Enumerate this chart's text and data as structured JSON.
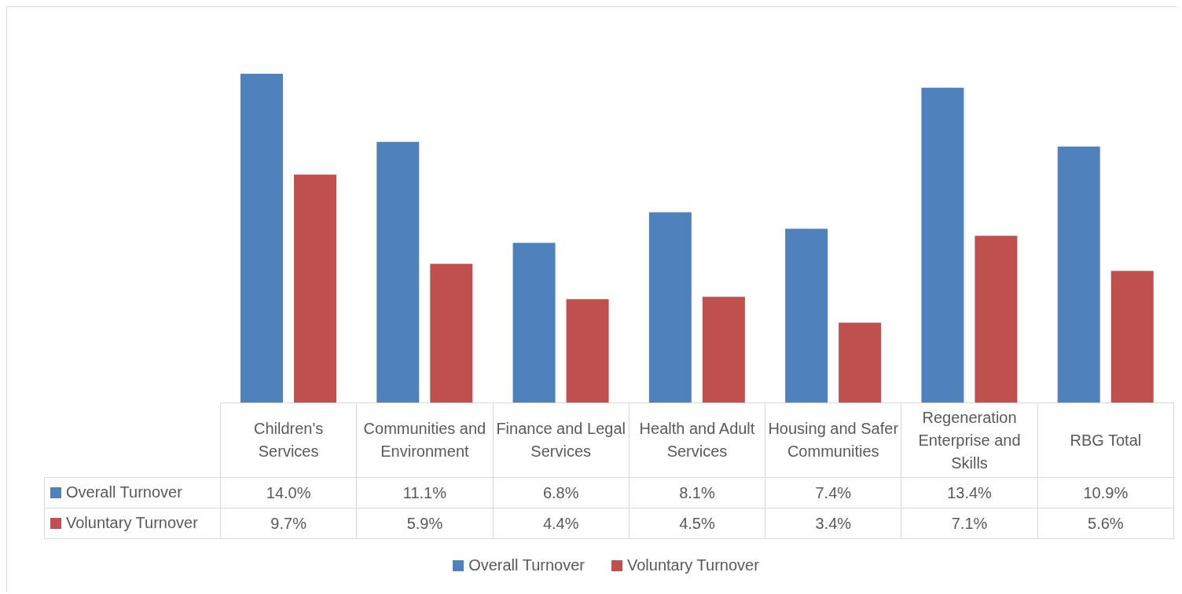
{
  "chart_data": {
    "type": "bar",
    "categories": [
      "Children's Services",
      "Communities and Environment",
      "Finance and Legal Services",
      "Health and Adult Services",
      "Housing and Safer Communities",
      "Regeneration Enterprise and Skills",
      "RBG Total"
    ],
    "series": [
      {
        "name": "Overall Turnover",
        "color": "#4f81bd",
        "values": [
          14.0,
          11.1,
          6.8,
          8.1,
          7.4,
          13.4,
          10.9
        ],
        "value_labels": [
          "14.0%",
          "11.1%",
          "6.8%",
          "8.1%",
          "7.4%",
          "13.4%",
          "10.9%"
        ]
      },
      {
        "name": "Voluntary Turnover",
        "color": "#c0504d",
        "values": [
          9.7,
          5.9,
          4.4,
          4.5,
          3.4,
          7.1,
          5.6
        ],
        "value_labels": [
          "9.7%",
          "5.9%",
          "4.4%",
          "4.5%",
          "3.4%",
          "7.1%",
          "5.6%"
        ]
      }
    ],
    "legend": "bottom"
  }
}
